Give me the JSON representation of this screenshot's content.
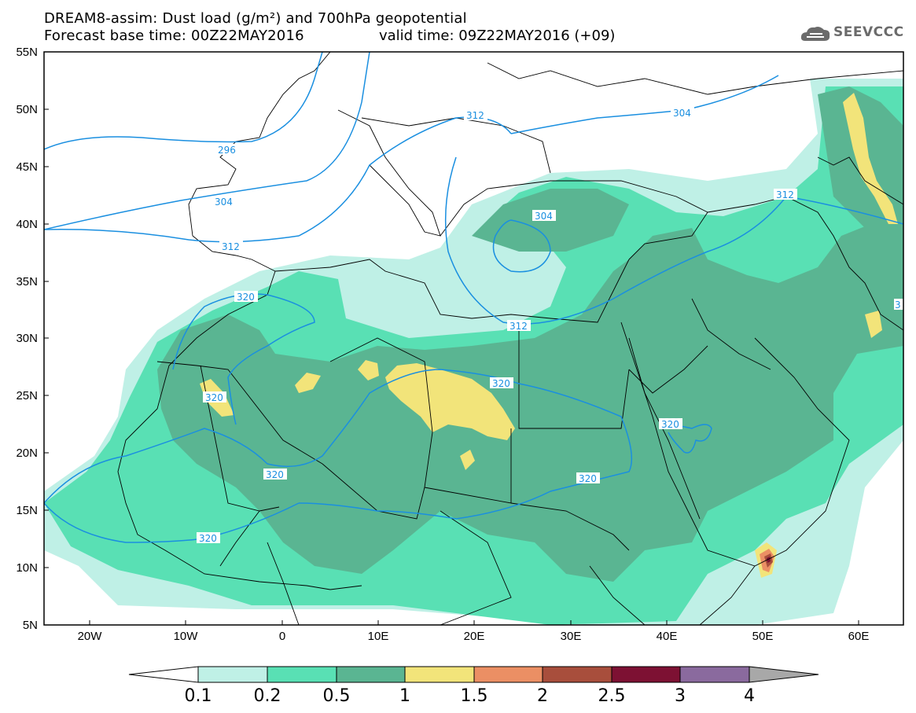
{
  "title": {
    "line1": "DREAM8-assim: Dust load (g/m²) and 700hPa geopotential",
    "line2": "Forecast base time: 00Z22MAY2016",
    "valid": "valid time: 09Z22MAY2016 (+09)"
  },
  "logo": {
    "text": "SEEVCCC",
    "icon": "cloud-icon"
  },
  "axes": {
    "lon_labels": [
      "20W",
      "10W",
      "0",
      "10E",
      "20E",
      "30E",
      "40E",
      "50E",
      "60E"
    ],
    "lat_labels": [
      "55N",
      "50N",
      "45N",
      "40N",
      "35N",
      "30N",
      "25N",
      "20N",
      "15N",
      "10N",
      "5N"
    ]
  },
  "contour_labels": [
    "296",
    "304",
    "312",
    "312",
    "304",
    "312",
    "304",
    "320",
    "312",
    "320",
    "320",
    "320",
    "320",
    "320",
    "320",
    "3"
  ],
  "colorbar": {
    "levels": [
      "0.1",
      "0.2",
      "0.5",
      "1",
      "1.5",
      "2",
      "2.5",
      "3",
      "4"
    ],
    "colors": [
      "#bff0e6",
      "#59e0b4",
      "#5ab592",
      "#f2e47a",
      "#eb8f64",
      "#a84e3c",
      "#7d1133",
      "#8a6a9e",
      "#a8a8a8"
    ]
  },
  "palette": {
    "contour_line": "#1a8fe0",
    "border": "#000000",
    "dust_01": "#bff0e6",
    "dust_02": "#59e0b4",
    "dust_05": "#5ab592",
    "dust_1": "#f2e47a",
    "dust_15": "#eb8f64",
    "dust_2": "#a84e3c",
    "dust_25": "#7d1133"
  }
}
